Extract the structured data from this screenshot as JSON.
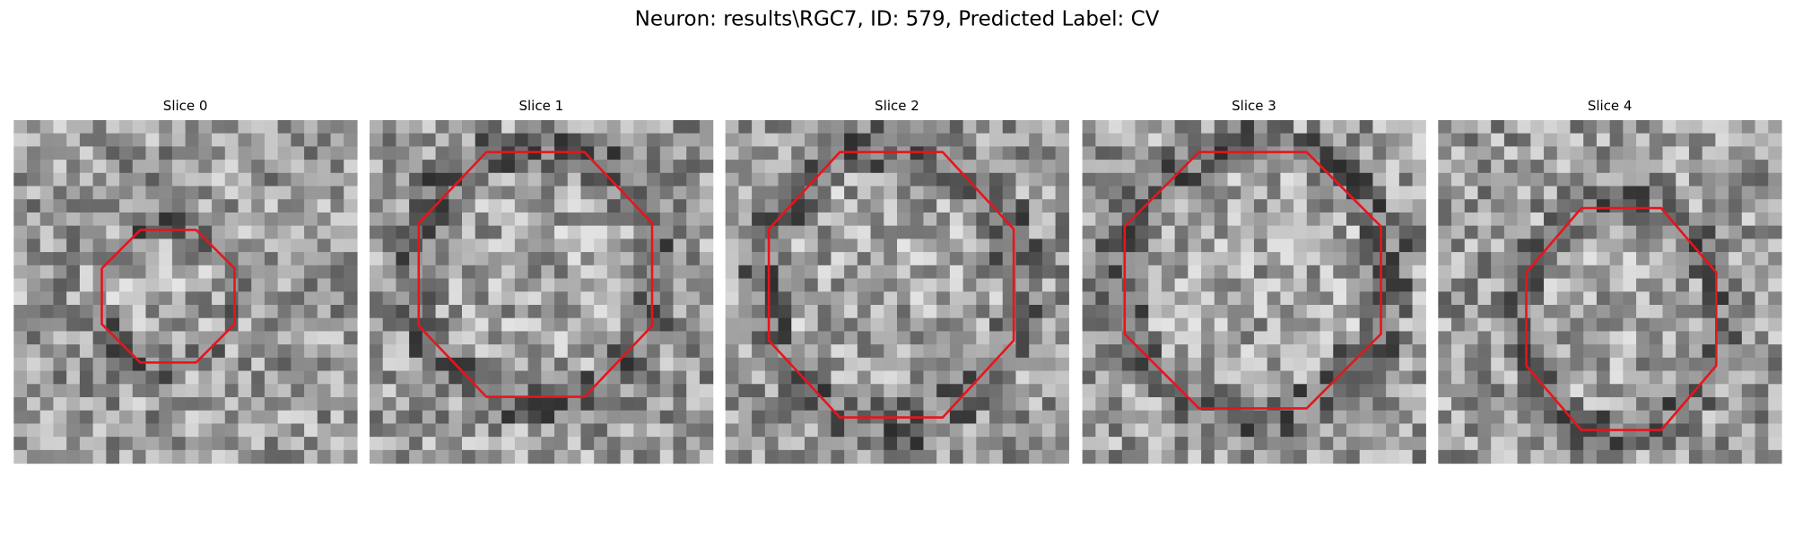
{
  "title": "Neuron: results\\RGC7, ID: 579, Predicted Label: CV",
  "panels": [
    {
      "title": "Slice 0"
    },
    {
      "title": "Slice 1"
    },
    {
      "title": "Slice 2"
    },
    {
      "title": "Slice 3"
    },
    {
      "title": "Slice 4"
    }
  ]
}
